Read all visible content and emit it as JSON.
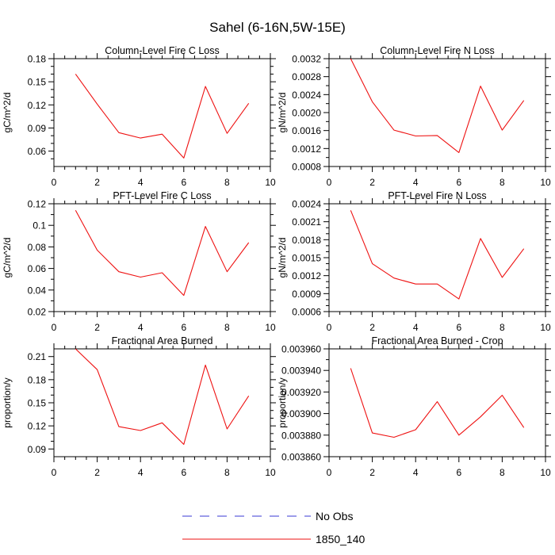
{
  "figure": {
    "title": "Sahel (6-16N,5W-15E)",
    "legend": [
      {
        "label": "No Obs",
        "color": "#3a3ad6",
        "dash": true
      },
      {
        "label": "1850_140",
        "color": "#ee1111",
        "dash": false
      }
    ]
  },
  "chart_data": [
    {
      "type": "line",
      "title": "Column-Level Fire C Loss",
      "xlabel": "",
      "ylabel": "gC/m^2/d",
      "xlim": [
        0,
        10
      ],
      "ylim": [
        0.04,
        0.18
      ],
      "xticks": [
        0,
        2,
        4,
        6,
        8,
        10
      ],
      "xtick_labels": [
        "0",
        "2",
        "4",
        "6",
        "8",
        "10"
      ],
      "yticks": [
        0.06,
        0.09,
        0.12,
        0.15,
        0.18
      ],
      "ytick_labels": [
        "0.06",
        "0.09",
        "0.12",
        "0.15",
        "0.18"
      ],
      "yminor": [
        0.05,
        0.07,
        0.08,
        0.1,
        0.11,
        0.13,
        0.14,
        0.16,
        0.17
      ],
      "series": [
        {
          "name": "1850_140",
          "color": "#ee1111",
          "x": [
            1,
            2,
            3,
            4,
            5,
            6,
            7,
            8,
            9
          ],
          "values": [
            0.16,
            0.121,
            0.084,
            0.077,
            0.082,
            0.051,
            0.144,
            0.083,
            0.122
          ]
        }
      ]
    },
    {
      "type": "line",
      "title": "Column-Level Fire N Loss",
      "xlabel": "",
      "ylabel": "gN/m^2/d",
      "xlim": [
        0,
        10
      ],
      "ylim": [
        0.0008,
        0.0032
      ],
      "xticks": [
        0,
        2,
        4,
        6,
        8,
        10
      ],
      "xtick_labels": [
        "0",
        "2",
        "4",
        "6",
        "8",
        "10"
      ],
      "yticks": [
        0.0008,
        0.0012,
        0.0016,
        0.002,
        0.0024,
        0.0028,
        0.0032
      ],
      "ytick_labels": [
        "0.0008",
        "0.0012",
        "0.0016",
        "0.0020",
        "0.0024",
        "0.0028",
        "0.0032"
      ],
      "yminor": [
        0.001,
        0.0014,
        0.0018,
        0.0022,
        0.0026,
        0.003
      ],
      "series": [
        {
          "name": "1850_140",
          "color": "#ee1111",
          "x": [
            1,
            2,
            3,
            4,
            5,
            6,
            7,
            8,
            9
          ],
          "values": [
            0.0032,
            0.00224,
            0.00161,
            0.00148,
            0.00149,
            0.00111,
            0.00259,
            0.00161,
            0.00227
          ]
        }
      ]
    },
    {
      "type": "line",
      "title": "PFT-Level Fire C Loss",
      "xlabel": "",
      "ylabel": "gC/m^2/d",
      "xlim": [
        0,
        10
      ],
      "ylim": [
        0.02,
        0.12
      ],
      "xticks": [
        0,
        2,
        4,
        6,
        8,
        10
      ],
      "xtick_labels": [
        "0",
        "2",
        "4",
        "6",
        "8",
        "10"
      ],
      "yticks": [
        0.02,
        0.04,
        0.06,
        0.08,
        0.1,
        0.12
      ],
      "ytick_labels": [
        "0.02",
        "0.04",
        "0.06",
        "0.08",
        "0.1",
        "0.12"
      ],
      "yminor": [
        0.03,
        0.05,
        0.07,
        0.09,
        0.11
      ],
      "series": [
        {
          "name": "1850_140",
          "color": "#ee1111",
          "x": [
            1,
            2,
            3,
            4,
            5,
            6,
            7,
            8,
            9
          ],
          "values": [
            0.114,
            0.077,
            0.057,
            0.052,
            0.056,
            0.035,
            0.099,
            0.057,
            0.084
          ]
        }
      ]
    },
    {
      "type": "line",
      "title": "PFT-Level Fire N Loss",
      "xlabel": "",
      "ylabel": "gN/m^2/d",
      "xlim": [
        0,
        10
      ],
      "ylim": [
        0.0006,
        0.0024
      ],
      "xticks": [
        0,
        2,
        4,
        6,
        8,
        10
      ],
      "xtick_labels": [
        "0",
        "2",
        "4",
        "6",
        "8",
        "10"
      ],
      "yticks": [
        0.0006,
        0.0009,
        0.0012,
        0.0015,
        0.0018,
        0.0021,
        0.0024
      ],
      "ytick_labels": [
        "0.0006",
        "0.0009",
        "0.0012",
        "0.0015",
        "0.0018",
        "0.0021",
        "0.0024"
      ],
      "yminor": [
        0.0007,
        0.0008,
        0.001,
        0.0011,
        0.0013,
        0.0014,
        0.0016,
        0.0017,
        0.0019,
        0.002,
        0.0022,
        0.0023
      ],
      "series": [
        {
          "name": "1850_140",
          "color": "#ee1111",
          "x": [
            1,
            2,
            3,
            4,
            5,
            6,
            7,
            8,
            9
          ],
          "values": [
            0.00229,
            0.0014,
            0.00116,
            0.00106,
            0.00106,
            0.00081,
            0.00182,
            0.00117,
            0.00165
          ]
        }
      ]
    },
    {
      "type": "line",
      "title": "Fractional Area Burned",
      "xlabel": "",
      "ylabel": "proportion/y",
      "xlim": [
        0,
        10
      ],
      "ylim": [
        0.08,
        0.22
      ],
      "xticks": [
        0,
        2,
        4,
        6,
        8,
        10
      ],
      "xtick_labels": [
        "0",
        "2",
        "4",
        "6",
        "8",
        "10"
      ],
      "yticks": [
        0.09,
        0.12,
        0.15,
        0.18,
        0.21
      ],
      "ytick_labels": [
        "0.09",
        "0.12",
        "0.15",
        "0.18",
        "0.21"
      ],
      "yminor": [
        0.1,
        0.11,
        0.13,
        0.14,
        0.16,
        0.17,
        0.19,
        0.2
      ],
      "series": [
        {
          "name": "1850_140",
          "color": "#ee1111",
          "x": [
            1,
            2,
            3,
            4,
            5,
            6,
            7,
            8,
            9
          ],
          "values": [
            0.22,
            0.193,
            0.119,
            0.114,
            0.124,
            0.096,
            0.199,
            0.116,
            0.159
          ]
        }
      ]
    },
    {
      "type": "line",
      "title": "Fractional Area Burned - Crop",
      "xlabel": "",
      "ylabel": "proportion/y",
      "xlim": [
        0,
        10
      ],
      "ylim": [
        0.00386,
        0.00396
      ],
      "xticks": [
        0,
        2,
        4,
        6,
        8,
        10
      ],
      "xtick_labels": [
        "0",
        "2",
        "4",
        "6",
        "8",
        "10"
      ],
      "yticks": [
        0.00386,
        0.00388,
        0.0039,
        0.00392,
        0.00394,
        0.00396
      ],
      "ytick_labels": [
        "0.003860",
        "0.003880",
        "0.003900",
        "0.003920",
        "0.003940",
        "0.003960"
      ],
      "yminor": [
        0.00387,
        0.00389,
        0.00391,
        0.00393,
        0.00395
      ],
      "series": [
        {
          "name": "1850_140",
          "color": "#ee1111",
          "x": [
            1,
            2,
            3,
            4,
            5,
            6,
            7,
            8,
            9
          ],
          "values": [
            0.003942,
            0.003882,
            0.003878,
            0.003885,
            0.003911,
            0.00388,
            0.003897,
            0.003917,
            0.003887
          ]
        }
      ]
    }
  ]
}
